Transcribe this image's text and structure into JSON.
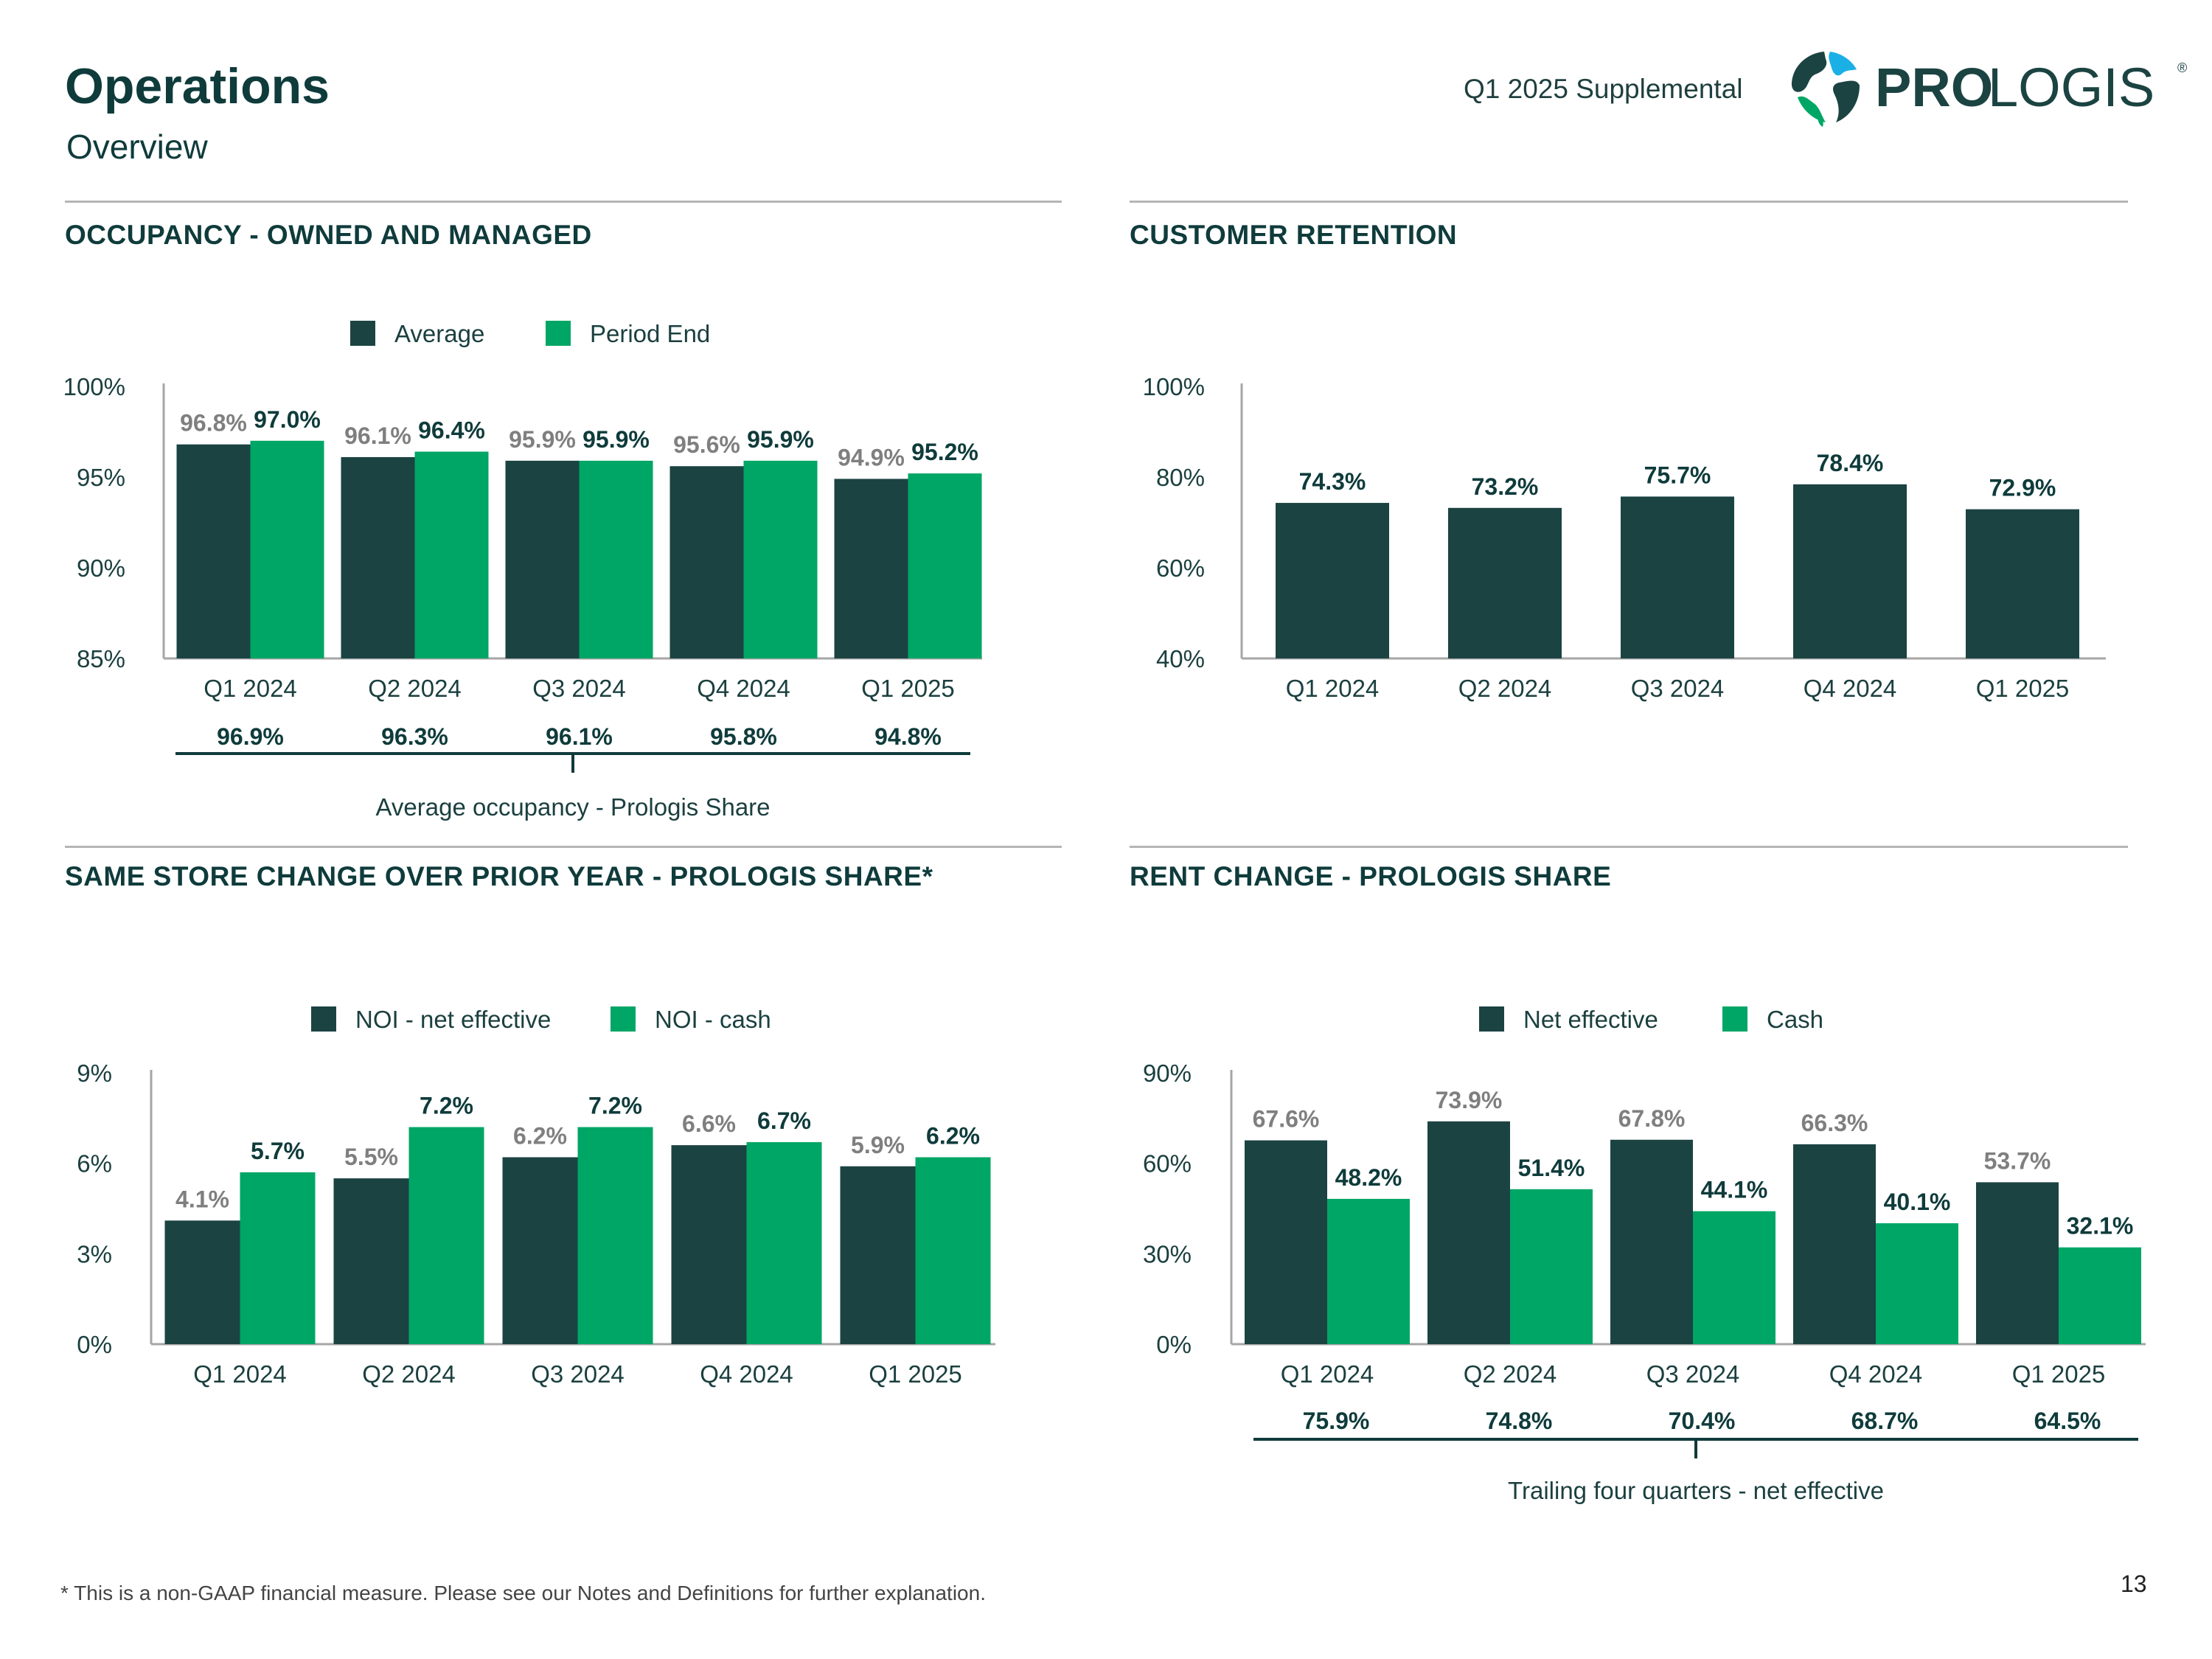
{
  "header": {
    "title": "Operations",
    "subtitle": "Overview",
    "supplemental": "Q1 2025 Supplemental",
    "logo_text_bold": "PRO",
    "logo_text_light": "LOGIS",
    "logo_mark": "®"
  },
  "colors": {
    "dark": "#1b4342",
    "green": "#00a665",
    "gray_label": "#7f7f7f",
    "axis": "#a6a6a6"
  },
  "sections": {
    "occupancy": "OCCUPANCY - OWNED AND MANAGED",
    "retention": "CUSTOMER RETENTION",
    "same_store": "SAME STORE CHANGE OVER PRIOR YEAR - PROLOGIS SHARE*",
    "rent_change": "RENT CHANGE - PROLOGIS SHARE"
  },
  "chart_data": [
    {
      "id": "occupancy",
      "type": "bar",
      "categories": [
        "Q1 2024",
        "Q2 2024",
        "Q3 2024",
        "Q4 2024",
        "Q1 2025"
      ],
      "series": [
        {
          "name": "Average",
          "values": [
            96.8,
            96.1,
            95.9,
            95.6,
            94.9
          ],
          "labels": [
            "96.8%",
            "96.1%",
            "95.9%",
            "95.6%",
            "94.9%"
          ]
        },
        {
          "name": "Period End",
          "values": [
            97.0,
            96.4,
            95.9,
            95.9,
            95.2
          ],
          "labels": [
            "97.0%",
            "96.4%",
            "95.9%",
            "95.9%",
            "95.2%"
          ]
        }
      ],
      "ylim": [
        85,
        100
      ],
      "yticks": [
        "85%",
        "90%",
        "95%",
        "100%"
      ],
      "ytick_values": [
        85,
        90,
        95,
        100
      ],
      "legend_position": "top-center",
      "bracket": {
        "values": [
          "96.9%",
          "96.3%",
          "96.1%",
          "95.8%",
          "94.8%"
        ],
        "caption": "Average occupancy - Prologis Share"
      }
    },
    {
      "id": "retention",
      "type": "bar",
      "categories": [
        "Q1 2024",
        "Q2 2024",
        "Q3 2024",
        "Q4 2024",
        "Q1 2025"
      ],
      "series": [
        {
          "values": [
            74.3,
            73.2,
            75.7,
            78.4,
            72.9
          ],
          "labels": [
            "74.3%",
            "73.2%",
            "75.7%",
            "78.4%",
            "72.9%"
          ]
        }
      ],
      "ylim": [
        40,
        100
      ],
      "yticks": [
        "40%",
        "60%",
        "80%",
        "100%"
      ],
      "ytick_values": [
        40,
        60,
        80,
        100
      ]
    },
    {
      "id": "same_store",
      "type": "bar",
      "categories": [
        "Q1 2024",
        "Q2 2024",
        "Q3 2024",
        "Q4 2024",
        "Q1 2025"
      ],
      "series": [
        {
          "name": "NOI - net effective",
          "values": [
            4.1,
            5.5,
            6.2,
            6.6,
            5.9
          ],
          "labels": [
            "4.1%",
            "5.5%",
            "6.2%",
            "6.6%",
            "5.9%"
          ]
        },
        {
          "name": "NOI - cash",
          "values": [
            5.7,
            7.2,
            7.2,
            6.7,
            6.2
          ],
          "labels": [
            "5.7%",
            "7.2%",
            "7.2%",
            "6.7%",
            "6.2%"
          ]
        }
      ],
      "ylim": [
        0,
        9
      ],
      "yticks": [
        "0%",
        "3%",
        "6%",
        "9%"
      ],
      "ytick_values": [
        0,
        3,
        6,
        9
      ],
      "legend_position": "top-center"
    },
    {
      "id": "rent_change",
      "type": "bar",
      "categories": [
        "Q1 2024",
        "Q2 2024",
        "Q3 2024",
        "Q4 2024",
        "Q1 2025"
      ],
      "series": [
        {
          "name": "Net effective",
          "values": [
            67.6,
            73.9,
            67.8,
            66.3,
            53.7
          ],
          "labels": [
            "67.6%",
            "73.9%",
            "67.8%",
            "66.3%",
            "53.7%"
          ]
        },
        {
          "name": "Cash",
          "values": [
            48.2,
            51.4,
            44.1,
            40.1,
            32.1
          ],
          "labels": [
            "48.2%",
            "51.4%",
            "44.1%",
            "40.1%",
            "32.1%"
          ]
        }
      ],
      "ylim": [
        0,
        90
      ],
      "yticks": [
        "0%",
        "30%",
        "60%",
        "90%"
      ],
      "ytick_values": [
        0,
        30,
        60,
        90
      ],
      "legend_position": "top-center",
      "bracket": {
        "values": [
          "75.9%",
          "74.8%",
          "70.4%",
          "68.7%",
          "64.5%"
        ],
        "caption": "Trailing four quarters - net effective"
      }
    }
  ],
  "footer": {
    "footnote": "* This is a non-GAAP financial measure. Please see our Notes and Definitions for further explanation.",
    "page_number": "13"
  }
}
